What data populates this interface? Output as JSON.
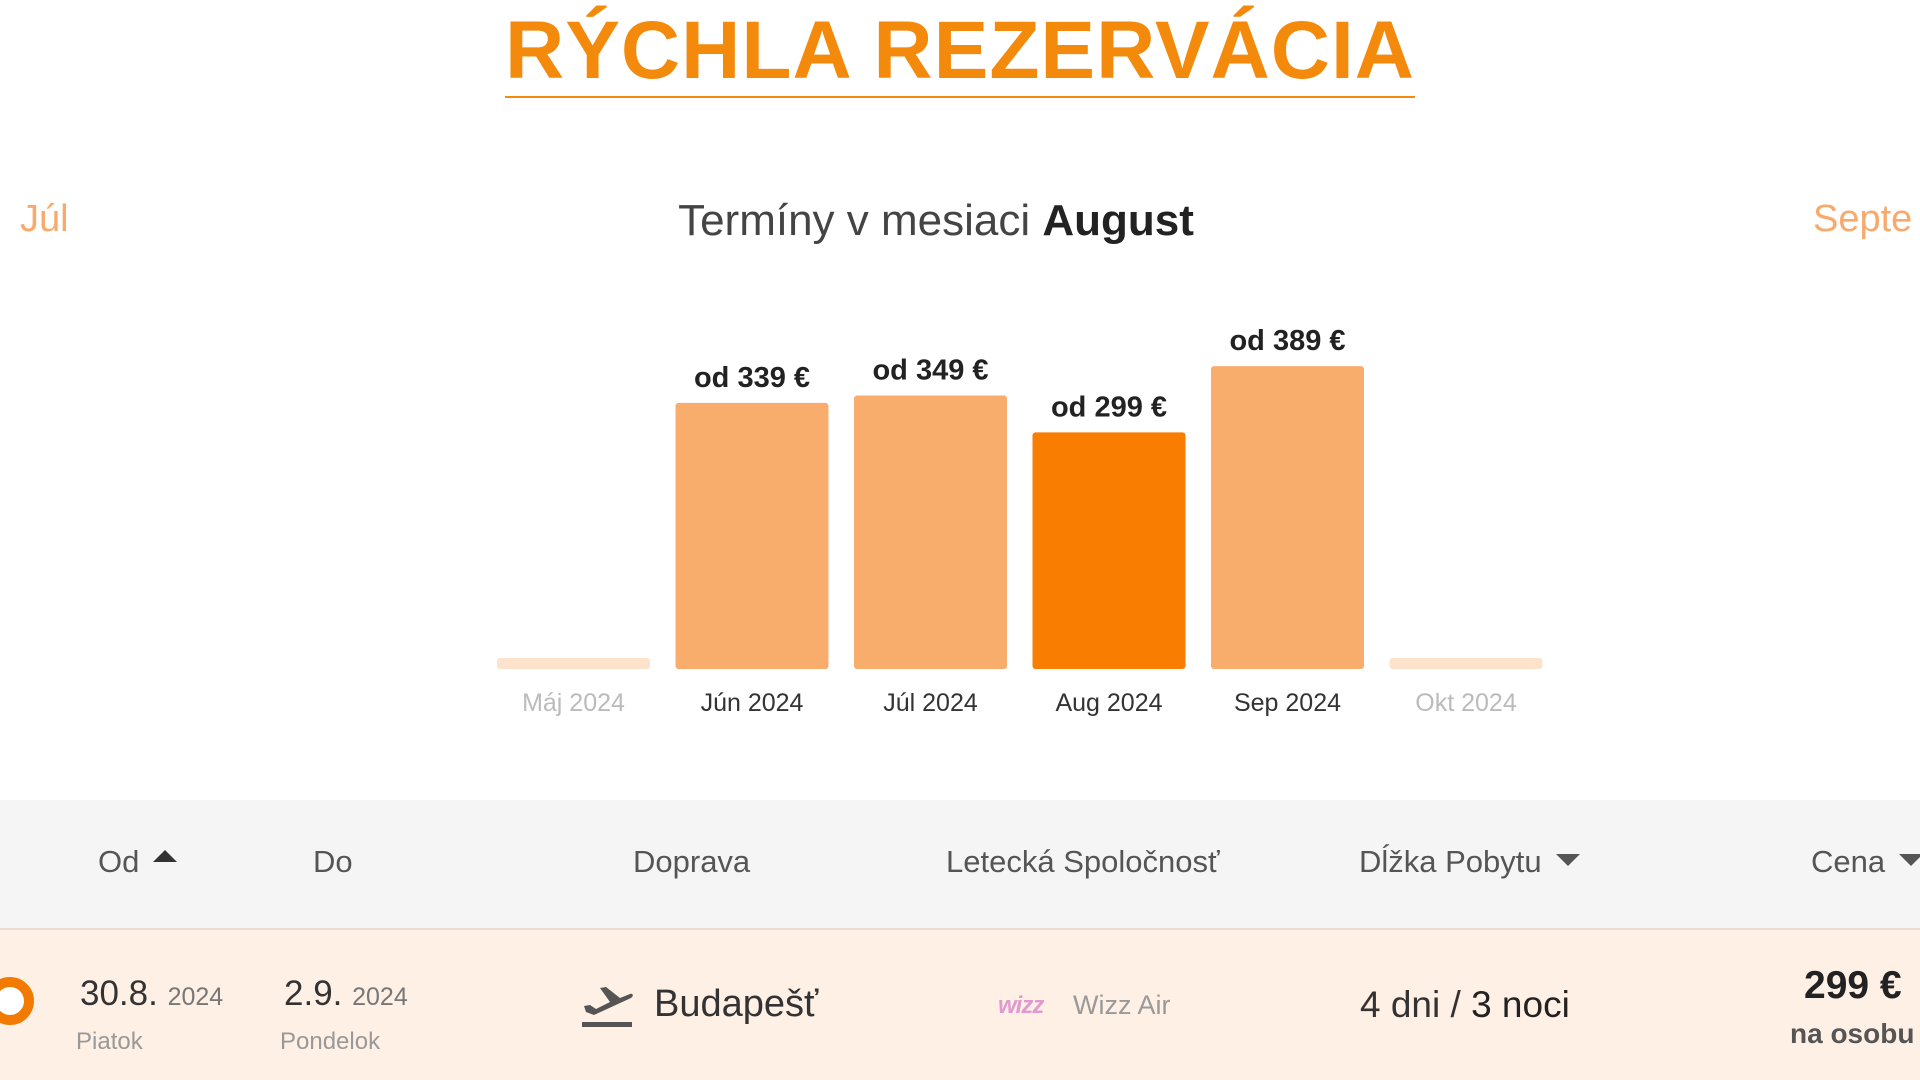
{
  "title": "RÝCHLA REZERVÁCIA",
  "month_nav": {
    "prev": "Júl",
    "next": "Septe",
    "heading_prefix": "Termíny v mesiaci",
    "heading_month": "August"
  },
  "colors": {
    "accent": "#f48a0c",
    "bar": "#f9ad6d",
    "bar_selected": "#f97d00",
    "bar_empty": "#fde2cc",
    "row_highlight": "#fff0e5"
  },
  "chart_data": {
    "type": "bar",
    "categories": [
      "Máj 2024",
      "Jún 2024",
      "Júl 2024",
      "Aug 2024",
      "Sep 2024",
      "Okt 2024"
    ],
    "values": [
      null,
      339,
      349,
      299,
      389,
      null
    ],
    "labels": [
      "",
      "od 339 €",
      "od 349 €",
      "od 299 €",
      "od 389 €",
      ""
    ],
    "selected_index": 3,
    "unit": "€",
    "grid": false
  },
  "table": {
    "headers": {
      "od": "Od",
      "do": "Do",
      "doprava": "Doprava",
      "airline": "Letecká Spoločnosť",
      "stay": "Dĺžka Pobytu",
      "price": "Cena"
    },
    "row": {
      "from_date": "30.8.",
      "from_year": "2024",
      "from_day": "Piatok",
      "to_date": "2.9.",
      "to_year": "2024",
      "to_day": "Pondelok",
      "transport": "Budapešť",
      "transport_icon": "airplane-departure-icon",
      "airline_logo": "wizz",
      "airline": "Wizz Air",
      "stay_days": "4 dni",
      "stay_sep": "/",
      "stay_nights": "3 noci",
      "price": "299 €",
      "price_note": "na osobu"
    }
  }
}
